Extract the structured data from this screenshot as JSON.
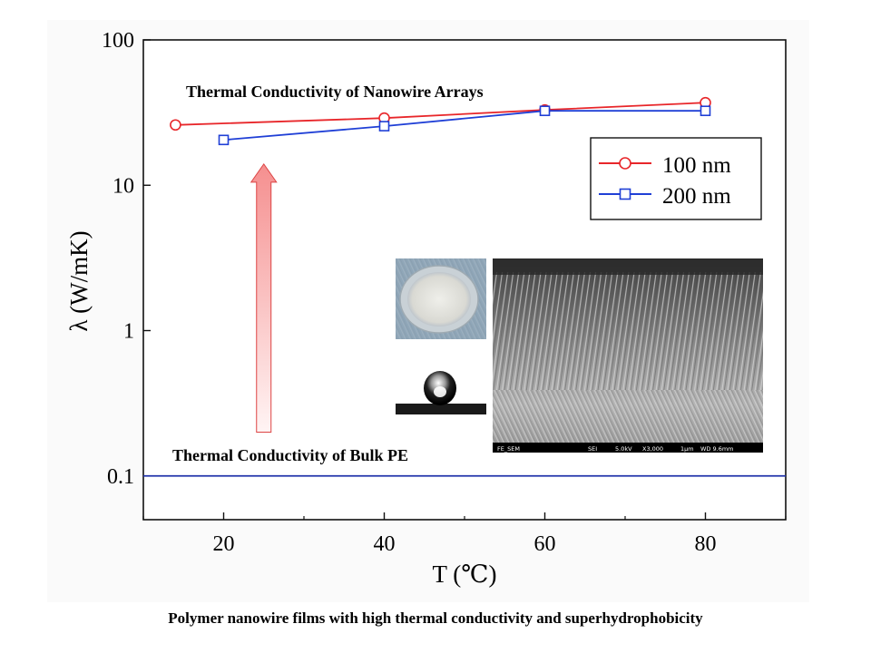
{
  "chart_data": {
    "type": "line",
    "xlabel": "T (℃)",
    "ylabel": "λ (W/mK)",
    "y_scale": "log",
    "xlim": [
      10,
      90
    ],
    "ylim": [
      0.05,
      100
    ],
    "x_ticks": [
      20,
      40,
      60,
      80
    ],
    "x_tick_labels": [
      "20",
      "40",
      "60",
      "80"
    ],
    "y_ticks": [
      0.1,
      1,
      10,
      100
    ],
    "y_tick_labels": [
      "0.1",
      "1",
      "10",
      "100"
    ],
    "grid": false,
    "legend_position": "top-right",
    "series": [
      {
        "name": "100 nm",
        "color": "#e8262a",
        "marker": "circle",
        "x": [
          14,
          40,
          60,
          80
        ],
        "y": [
          26,
          29,
          33,
          37
        ]
      },
      {
        "name": "200 nm",
        "color": "#1f3fd6",
        "marker": "square",
        "x": [
          20,
          40,
          60,
          80
        ],
        "y": [
          20.5,
          25.5,
          32.5,
          32.5
        ]
      }
    ],
    "reference_line": {
      "y": 0.1,
      "color": "#2233aa",
      "label": "Thermal Conductivity of Bulk PE"
    },
    "annotations": [
      {
        "text": "Thermal Conductivity of Nanowire Arrays"
      }
    ],
    "arrow": {
      "from_y": 0.2,
      "to_y": 14,
      "x": 25,
      "fill": "#f7a3a3",
      "stroke": "#d44"
    }
  },
  "sem_labels": [
    "FE_SEM",
    "SEI",
    "5.0kV",
    "X3,000",
    "1μm",
    "WD 9.6mm"
  ],
  "caption": "Polymer nanowire films with high thermal conductivity and superhydrophobicity"
}
